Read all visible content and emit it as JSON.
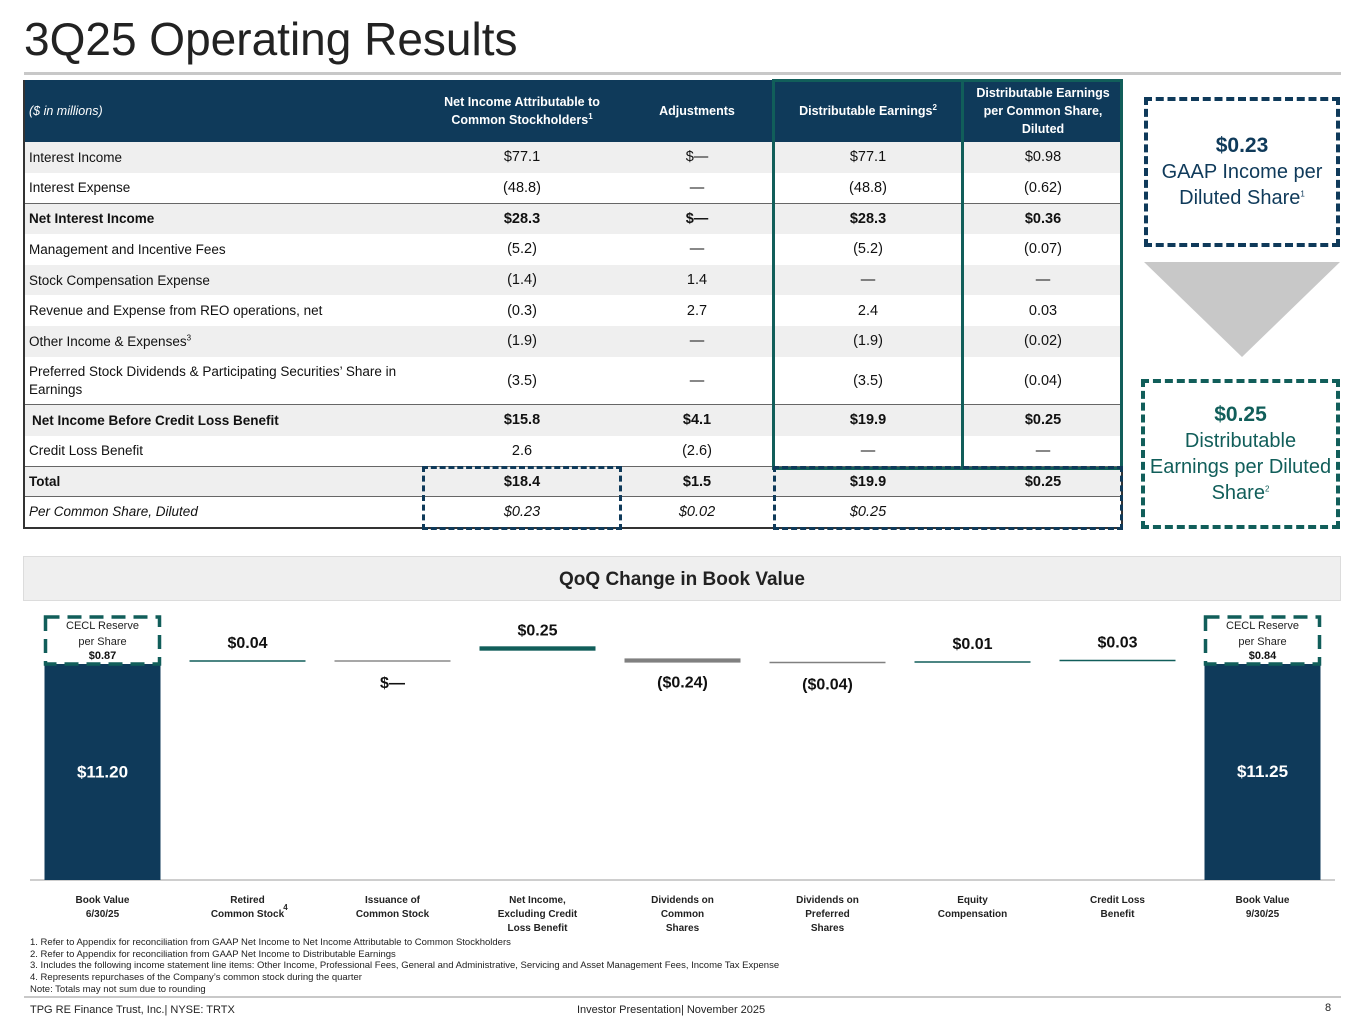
{
  "title": "3Q25 Operating Results",
  "table": {
    "headers": {
      "c0": "($ in millions)",
      "c1": "Net Income Attributable to Common Stockholders",
      "c1_sup": "1",
      "c2": "Adjustments",
      "c3": "Distributable Earnings",
      "c3_sup": "2",
      "c4": "Distributable Earnings per Common Share, Diluted"
    },
    "rows": [
      {
        "label": "Interest Income",
        "c1": "$77.1",
        "c2": "$—",
        "c3": "$77.1",
        "c4": "$0.98"
      },
      {
        "label": "Interest Expense",
        "c1": "(48.8)",
        "c2": "—",
        "c3": "(48.8)",
        "c4": "(0.62)"
      },
      {
        "label": "Net Interest Income",
        "c1": "$28.3",
        "c2": "$—",
        "c3": "$28.3",
        "c4": "$0.36"
      },
      {
        "label": "Management and Incentive Fees",
        "c1": "(5.2)",
        "c2": "—",
        "c3": "(5.2)",
        "c4": "(0.07)"
      },
      {
        "label": "Stock Compensation Expense",
        "c1": "(1.4)",
        "c2": "1.4",
        "c3": "—",
        "c4": "—"
      },
      {
        "label": "Revenue and Expense from REO operations, net",
        "c1": "(0.3)",
        "c2": "2.7",
        "c3": "2.4",
        "c4": "0.03"
      },
      {
        "label": "Other Income & Expenses",
        "label_sup": "3",
        "c1": "(1.9)",
        "c2": "—",
        "c3": "(1.9)",
        "c4": "(0.02)"
      },
      {
        "label": "Preferred Stock Dividends & Participating Securities’ Share in Earnings",
        "c1": "(3.5)",
        "c2": "—",
        "c3": "(3.5)",
        "c4": "(0.04)"
      },
      {
        "label": "Net Income Before Credit Loss Benefit",
        "c1": "$15.8",
        "c2": "$4.1",
        "c3": "$19.9",
        "c4": "$0.25"
      },
      {
        "label": "Credit Loss Benefit",
        "c1": "2.6",
        "c2": "(2.6)",
        "c3": "—",
        "c4": "—"
      },
      {
        "label": "Total",
        "c1": "$18.4",
        "c2": "$1.5",
        "c3": "$19.9",
        "c4": "$0.25"
      },
      {
        "label": "Per Common Share, Diluted",
        "c1": "$0.23",
        "c2": "$0.02",
        "c3": "$0.25",
        "c4": ""
      }
    ]
  },
  "callouts": {
    "gaap": {
      "value": "$0.23",
      "text": "GAAP Income per Diluted Share",
      "sup": "1"
    },
    "de": {
      "value": "$0.25",
      "text": "Distributable Earnings per Diluted Share",
      "sup": "2"
    }
  },
  "book_value": {
    "header": "QoQ Change in Book Value",
    "cecl_start": {
      "line1": "CECL Reserve",
      "line2": "per Share",
      "value": "$0.87"
    },
    "cecl_end": {
      "line1": "CECL Reserve",
      "line2": "per Share",
      "value": "$0.84"
    },
    "colors": {
      "navy": "#0f3a5a",
      "teal": "#115e5a",
      "gray": "#8a8a8a",
      "up": "#115e5a",
      "down": "#808080"
    }
  },
  "chart_data": {
    "type": "bar",
    "subtype": "waterfall",
    "title": "QoQ Change in Book Value",
    "categories": [
      "Book Value 6/30/25",
      "Retired Common Stock",
      "Issuance of Common Stock",
      "Net Income, Excluding Credit Loss Benefit",
      "Dividends on Common Shares",
      "Dividends on Preferred Shares",
      "Equity Compensation",
      "Credit Loss Benefit",
      "Book Value 9/30/25"
    ],
    "category_lines": [
      [
        "Book Value",
        "6/30/25"
      ],
      [
        "Retired",
        "Common Stock"
      ],
      [
        "Issuance of",
        "Common Stock"
      ],
      [
        "Net Income,",
        "Excluding Credit",
        "Loss Benefit"
      ],
      [
        "Dividends on",
        "Common",
        "Shares"
      ],
      [
        "Dividends on",
        "Preferred",
        "Shares"
      ],
      [
        "Equity",
        "Compensation"
      ],
      [
        "Credit Loss",
        "Benefit"
      ],
      [
        "Book Value",
        "9/30/25"
      ]
    ],
    "category_sup": {
      "1": "4"
    },
    "values": [
      11.2,
      0.04,
      0,
      0.25,
      -0.24,
      -0.04,
      0.01,
      0.03,
      11.25
    ],
    "value_labels": [
      "$11.20",
      "$0.04",
      "$—",
      "$0.25",
      "($0.24)",
      "($0.04)",
      "$0.01",
      "$0.03",
      "$11.25"
    ],
    "xlabel": "",
    "ylabel": ""
  },
  "footnotes": [
    "1. Refer to Appendix for reconciliation from GAAP Net Income  to Net Income  Attributable to Common Stockholders",
    "2. Refer to Appendix for reconciliation from GAAP Net Income  to Distributable Earnings",
    "3. Includes the following income statement line items: Other Income, Professional Fees, General and Administrative, Servicing and Asset Management Fees, Income Tax Expense",
    "4. Represents repurchases of the Company’s common stock during the quarter",
    "Note: Totals may not sum due to rounding"
  ],
  "footer": {
    "left": "TPG RE Finance Trust, Inc.| NYSE: TRTX",
    "middle": "Investor Presentation| November 2025",
    "page": "8"
  }
}
